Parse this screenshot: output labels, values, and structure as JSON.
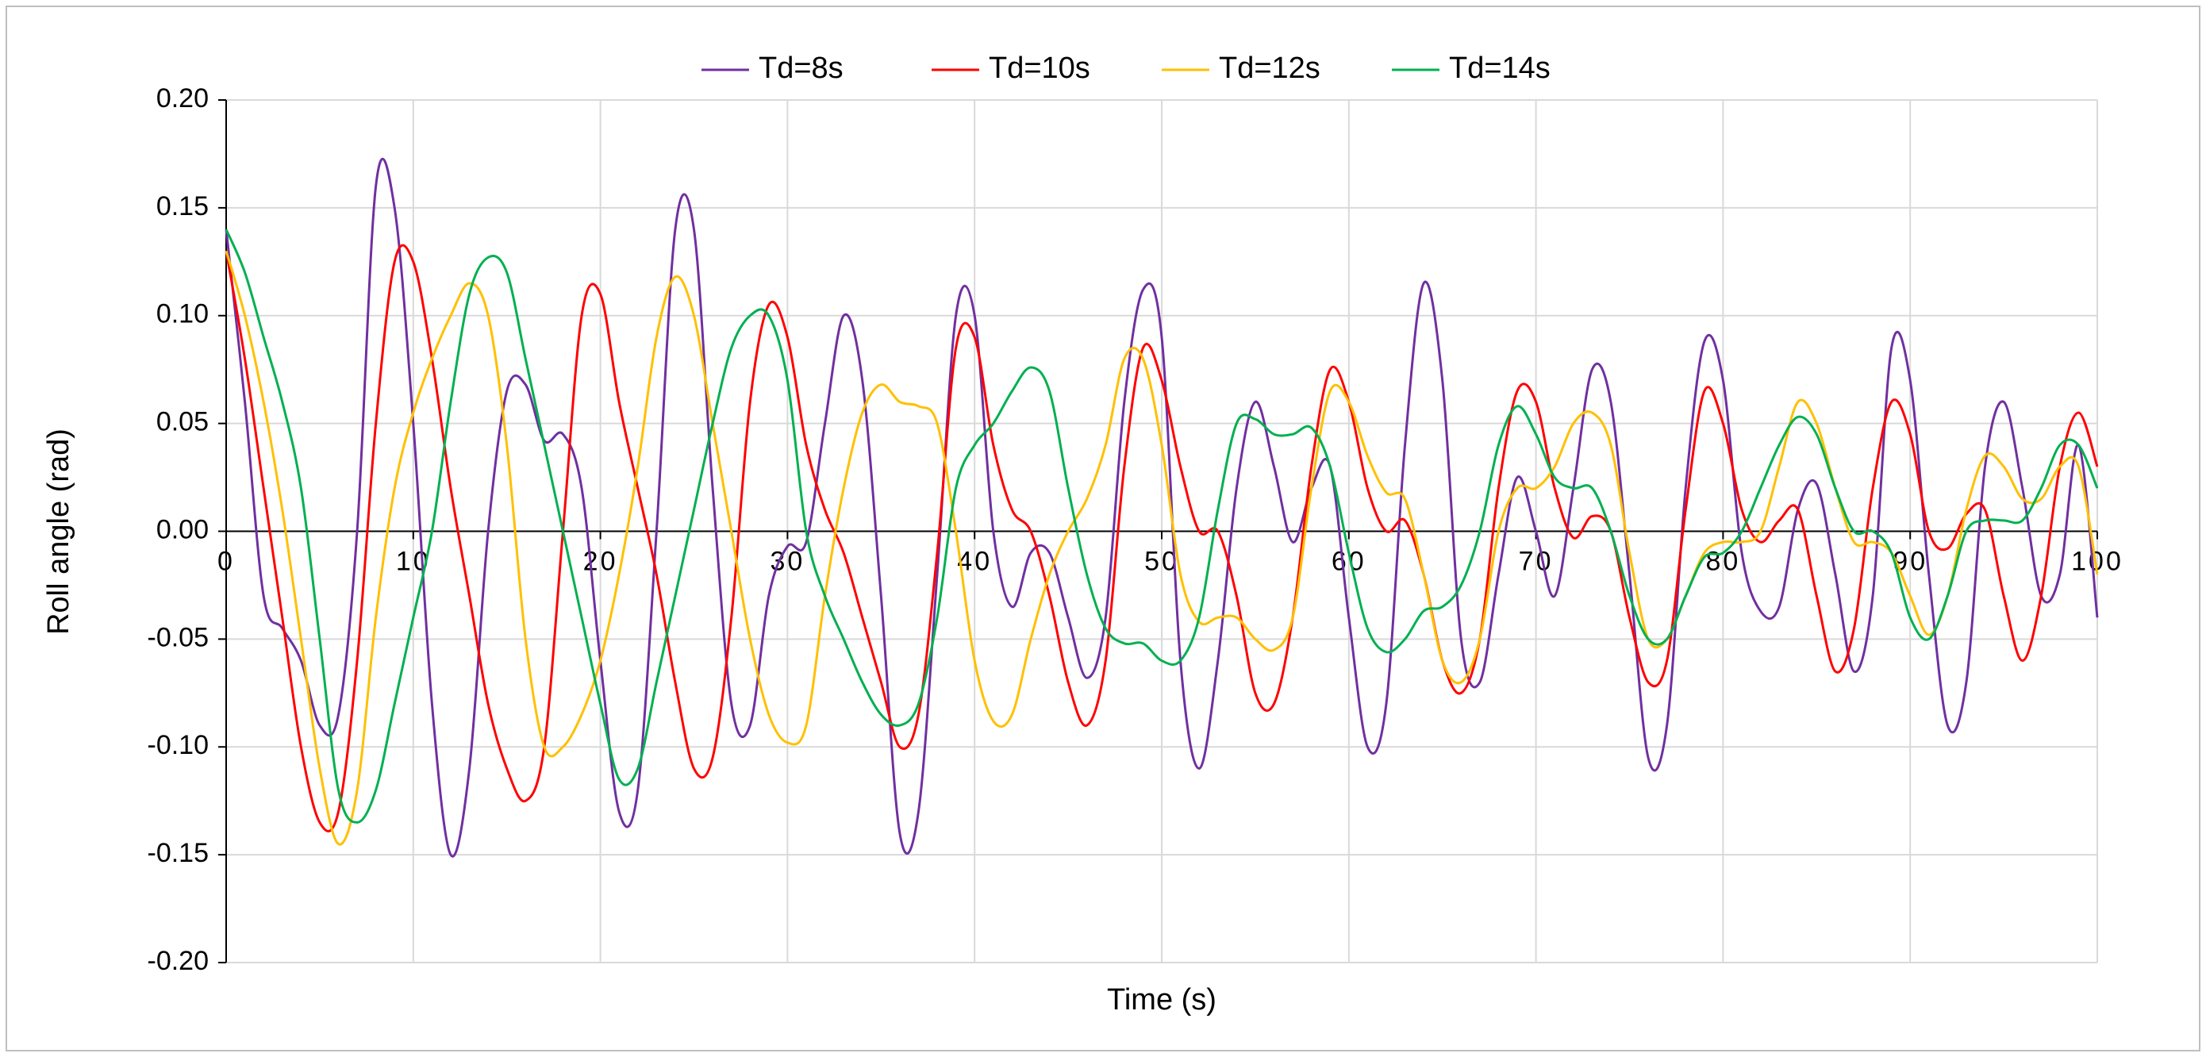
{
  "chart_data": {
    "type": "line",
    "x_label": "Time (s)",
    "y_label": "Roll angle (rad)",
    "x": [
      0,
      1,
      2,
      3,
      4,
      5,
      6,
      7,
      8,
      9,
      10,
      11,
      12,
      13,
      14,
      15,
      16,
      17,
      18,
      19,
      20,
      21,
      22,
      23,
      24,
      25,
      26,
      27,
      28,
      29,
      30,
      31,
      32,
      33,
      34,
      35,
      36,
      37,
      38,
      39,
      40,
      41,
      42,
      43,
      44,
      45,
      46,
      47,
      48,
      49,
      50,
      51,
      52,
      53,
      54,
      55,
      56,
      57,
      58,
      59,
      60,
      61,
      62,
      63,
      64,
      65,
      66,
      67,
      68,
      69,
      70,
      71,
      72,
      73,
      74,
      75,
      76,
      77,
      78,
      79,
      80,
      81,
      82,
      83,
      84,
      85,
      86,
      87,
      88,
      89,
      90,
      91,
      92,
      93,
      94,
      95,
      96,
      97,
      98,
      99,
      100
    ],
    "series": [
      {
        "name": "Td=8s",
        "color": "#7030a0",
        "values": [
          0.14,
          0.06,
          -0.03,
          -0.045,
          -0.06,
          -0.09,
          -0.085,
          0.0,
          0.16,
          0.15,
          0.05,
          -0.08,
          -0.15,
          -0.11,
          0.0,
          0.065,
          0.068,
          0.042,
          0.045,
          0.02,
          -0.06,
          -0.13,
          -0.12,
          0.0,
          0.14,
          0.14,
          0.02,
          -0.08,
          -0.09,
          -0.03,
          -0.007,
          -0.005,
          0.05,
          0.1,
          0.07,
          -0.03,
          -0.14,
          -0.13,
          -0.02,
          0.1,
          0.1,
          0.0,
          -0.035,
          -0.01,
          -0.01,
          -0.04,
          -0.068,
          -0.04,
          0.06,
          0.112,
          0.09,
          -0.06,
          -0.11,
          -0.06,
          0.02,
          0.06,
          0.03,
          -0.005,
          0.02,
          0.03,
          -0.04,
          -0.1,
          -0.08,
          0.04,
          0.115,
          0.07,
          -0.05,
          -0.07,
          -0.02,
          0.025,
          0.0,
          -0.03,
          0.02,
          0.075,
          0.06,
          -0.02,
          -0.105,
          -0.09,
          0.02,
          0.088,
          0.07,
          -0.01,
          -0.037,
          -0.035,
          0.01,
          0.022,
          -0.02,
          -0.065,
          -0.03,
          0.085,
          0.07,
          -0.02,
          -0.09,
          -0.07,
          0.03,
          0.06,
          0.02,
          -0.03,
          -0.02,
          0.04,
          -0.04
        ]
      },
      {
        "name": "Td=10s",
        "color": "#ff0000",
        "values": [
          0.13,
          0.08,
          0.02,
          -0.04,
          -0.1,
          -0.135,
          -0.13,
          -0.06,
          0.05,
          0.125,
          0.125,
          0.08,
          0.02,
          -0.03,
          -0.08,
          -0.11,
          -0.125,
          -0.1,
          0.0,
          0.1,
          0.11,
          0.06,
          0.02,
          -0.02,
          -0.07,
          -0.11,
          -0.105,
          -0.04,
          0.06,
          0.105,
          0.09,
          0.04,
          0.01,
          -0.01,
          -0.04,
          -0.07,
          -0.1,
          -0.085,
          -0.01,
          0.085,
          0.09,
          0.04,
          0.01,
          0.0,
          -0.03,
          -0.07,
          -0.09,
          -0.06,
          0.03,
          0.085,
          0.07,
          0.03,
          0.0,
          0.0,
          -0.03,
          -0.075,
          -0.08,
          -0.04,
          0.03,
          0.075,
          0.06,
          0.02,
          0.0,
          0.005,
          -0.02,
          -0.06,
          -0.075,
          -0.05,
          0.02,
          0.065,
          0.06,
          0.02,
          -0.003,
          0.007,
          0.0,
          -0.04,
          -0.07,
          -0.06,
          0.01,
          0.065,
          0.05,
          0.01,
          -0.005,
          0.005,
          0.01,
          -0.03,
          -0.065,
          -0.045,
          0.02,
          0.06,
          0.045,
          0.0,
          -0.008,
          0.008,
          0.01,
          -0.03,
          -0.06,
          -0.03,
          0.03,
          0.055,
          0.03
        ]
      },
      {
        "name": "Td=12s",
        "color": "#ffc000",
        "values": [
          0.13,
          0.1,
          0.06,
          0.01,
          -0.05,
          -0.11,
          -0.145,
          -0.12,
          -0.04,
          0.02,
          0.055,
          0.08,
          0.1,
          0.115,
          0.1,
          0.04,
          -0.05,
          -0.1,
          -0.1,
          -0.085,
          -0.06,
          -0.02,
          0.03,
          0.09,
          0.118,
          0.1,
          0.05,
          0.0,
          -0.05,
          -0.085,
          -0.098,
          -0.09,
          -0.03,
          0.02,
          0.055,
          0.068,
          0.06,
          0.058,
          0.05,
          0.0,
          -0.06,
          -0.088,
          -0.085,
          -0.05,
          -0.02,
          0.0,
          0.015,
          0.04,
          0.08,
          0.08,
          0.04,
          -0.02,
          -0.042,
          -0.04,
          -0.04,
          -0.05,
          -0.055,
          -0.04,
          0.02,
          0.065,
          0.06,
          0.035,
          0.018,
          0.015,
          -0.02,
          -0.06,
          -0.07,
          -0.05,
          0.0,
          0.02,
          0.02,
          0.03,
          0.05,
          0.055,
          0.04,
          -0.01,
          -0.05,
          -0.05,
          -0.03,
          -0.01,
          -0.005,
          -0.005,
          0.0,
          0.03,
          0.06,
          0.05,
          0.02,
          -0.005,
          -0.005,
          -0.01,
          -0.03,
          -0.048,
          -0.03,
          0.01,
          0.035,
          0.03,
          0.015,
          0.015,
          0.03,
          0.03,
          -0.02
        ]
      },
      {
        "name": "Td=14s",
        "color": "#00b050",
        "values": [
          0.14,
          0.12,
          0.09,
          0.06,
          0.02,
          -0.05,
          -0.12,
          -0.135,
          -0.12,
          -0.08,
          -0.04,
          0.0,
          0.06,
          0.11,
          0.127,
          0.12,
          0.08,
          0.04,
          0.0,
          -0.04,
          -0.08,
          -0.115,
          -0.11,
          -0.07,
          -0.03,
          0.01,
          0.05,
          0.085,
          0.1,
          0.1,
          0.07,
          0.0,
          -0.03,
          -0.05,
          -0.07,
          -0.085,
          -0.09,
          -0.08,
          -0.04,
          0.02,
          0.04,
          0.05,
          0.065,
          0.076,
          0.065,
          0.02,
          -0.02,
          -0.045,
          -0.052,
          -0.052,
          -0.06,
          -0.06,
          -0.04,
          0.01,
          0.05,
          0.052,
          0.045,
          0.045,
          0.048,
          0.03,
          -0.01,
          -0.045,
          -0.056,
          -0.05,
          -0.037,
          -0.035,
          -0.025,
          0.0,
          0.04,
          0.058,
          0.045,
          0.025,
          0.02,
          0.02,
          0.0,
          -0.03,
          -0.05,
          -0.05,
          -0.03,
          -0.012,
          -0.01,
          0.0,
          0.02,
          0.04,
          0.053,
          0.045,
          0.02,
          0.0,
          0.0,
          -0.01,
          -0.04,
          -0.05,
          -0.03,
          0.0,
          0.005,
          0.005,
          0.005,
          0.02,
          0.04,
          0.04,
          0.02
        ]
      }
    ],
    "xlim": [
      0,
      100
    ],
    "xticks": [
      0,
      10,
      20,
      30,
      40,
      50,
      60,
      70,
      80,
      90,
      100
    ],
    "ylim": [
      -0.2,
      0.2
    ],
    "yticks": [
      {
        "value": -0.2,
        "label": "-0.20"
      },
      {
        "value": -0.15,
        "label": "-0.15"
      },
      {
        "value": -0.1,
        "label": "-0.10"
      },
      {
        "value": -0.05,
        "label": "-0.05"
      },
      {
        "value": 0,
        "label": "0.00"
      },
      {
        "value": 0.05,
        "label": "0.05"
      },
      {
        "value": 0.1,
        "label": "0.10"
      },
      {
        "value": 0.15,
        "label": "0.15"
      },
      {
        "value": 0.2,
        "label": "0.20"
      }
    ],
    "grid": true,
    "legend": "top"
  }
}
